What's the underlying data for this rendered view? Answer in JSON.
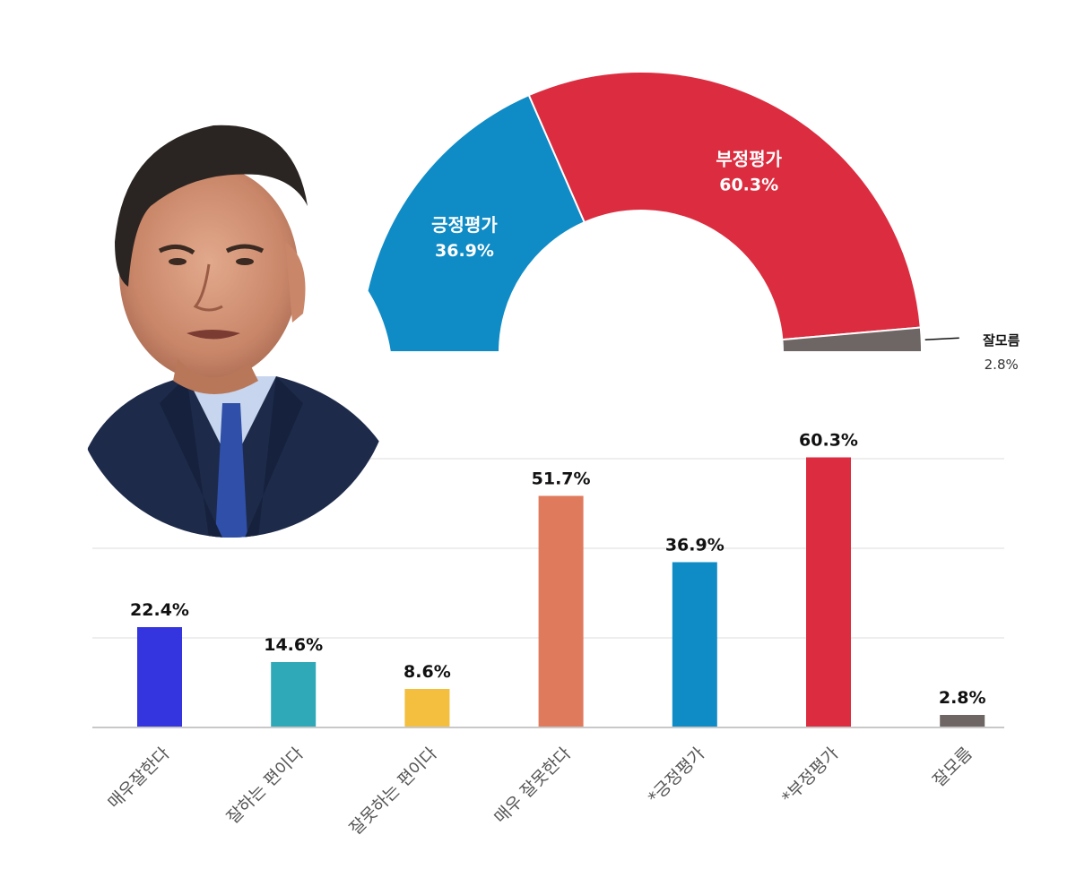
{
  "chart_data": [
    {
      "type": "pie",
      "variant": "semi-donut",
      "slices": [
        {
          "label": "긍정평가",
          "value": 36.9,
          "value_label": "36.9%",
          "color": "#0f8bc6"
        },
        {
          "label": "부정평가",
          "value": 60.3,
          "value_label": "60.3%",
          "color": "#dc2c3f"
        },
        {
          "label": "잘모름",
          "value": 2.8,
          "value_label": "2.8%",
          "color": "#6e6664"
        }
      ]
    },
    {
      "type": "bar",
      "categories": [
        "매우잘한다",
        "잘하는 편이다",
        "잘못하는 편이다",
        "매우 잘못한다",
        "*긍정평가",
        "*부정평가",
        "잘모름"
      ],
      "values": [
        22.4,
        14.6,
        8.6,
        51.7,
        36.9,
        60.3,
        2.8
      ],
      "value_labels": [
        "22.4%",
        "14.6%",
        "8.6%",
        "51.7%",
        "36.9%",
        "60.3%",
        "2.8%"
      ],
      "colors": [
        "#3535e0",
        "#2fa9b8",
        "#f4be3e",
        "#e07a5c",
        "#0f8bc6",
        "#dc2c3f",
        "#6e6664"
      ],
      "ylim": [
        0,
        60
      ],
      "grid": true
    }
  ],
  "photo": {
    "icon": "person-portrait-icon",
    "suit_color": "#1d2a4a",
    "shirt_color": "#c7d6ee",
    "tie_color": "#2f4fa8"
  }
}
